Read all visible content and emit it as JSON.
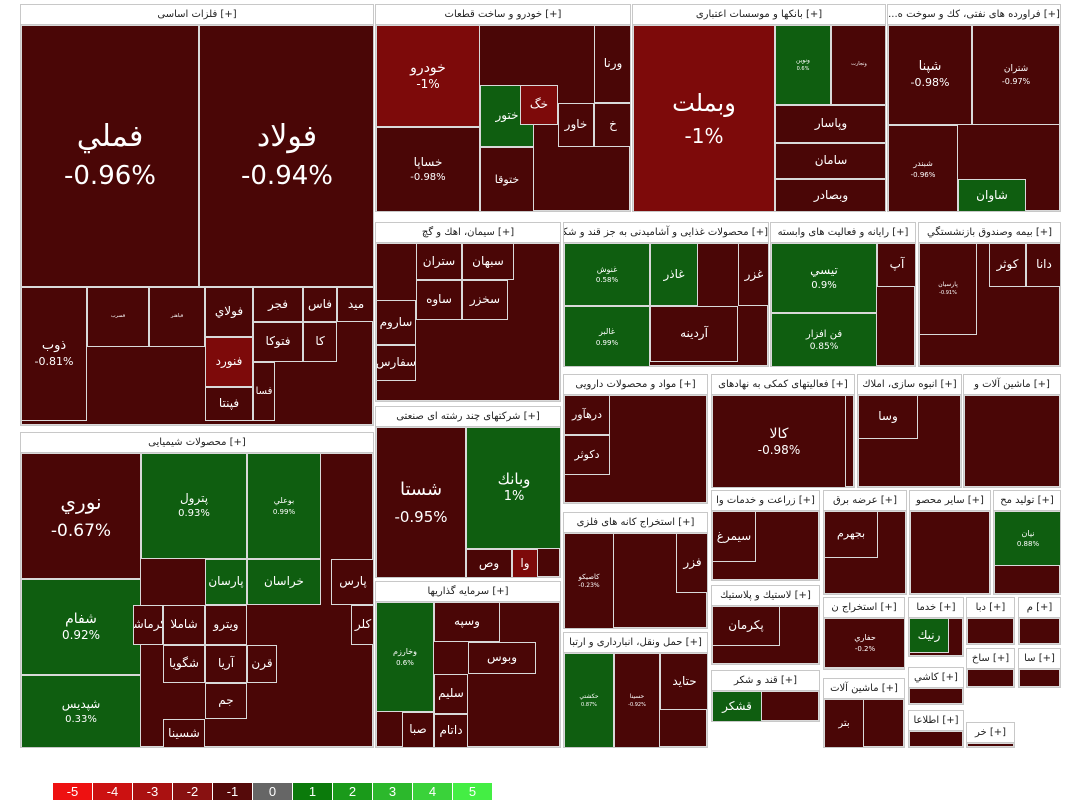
{
  "colors": {
    "red_dark": "#4a0606",
    "red_mid": "#7d0a0a",
    "green_dark": "#0f5e10"
  },
  "sectors": [
    {
      "name": "[+] فلزات اساسی",
      "tiles": [
        {
          "n": "فملي",
          "p": "-0.96%"
        },
        {
          "n": "فولاد",
          "p": "-0.94%"
        },
        {
          "n": "ذوب",
          "p": "-0.81%"
        },
        {
          "n": "فسرب",
          "p": ""
        },
        {
          "n": "فباهنر",
          "p": ""
        },
        {
          "n": "فولاي",
          "p": ""
        },
        {
          "n": "فجر",
          "p": ""
        },
        {
          "n": "فاس",
          "p": ""
        },
        {
          "n": "فتوكا",
          "p": ""
        },
        {
          "n": "فنورد",
          "p": ""
        },
        {
          "n": "فپنتا",
          "p": ""
        },
        {
          "n": "كا",
          "p": ""
        },
        {
          "n": "ميد",
          "p": ""
        },
        {
          "n": "فسا",
          "p": ""
        }
      ]
    },
    {
      "name": "[+] خودرو و ساخت قطعات",
      "tiles": [
        {
          "n": "خودرو",
          "p": "-1%"
        },
        {
          "n": "خساپا",
          "p": "-0.98%"
        },
        {
          "n": "ختور",
          "p": ""
        },
        {
          "n": "ختوقا",
          "p": ""
        },
        {
          "n": "ورنا",
          "p": ""
        },
        {
          "n": "خگ",
          "p": ""
        },
        {
          "n": "خاور",
          "p": ""
        },
        {
          "n": "خ",
          "p": ""
        }
      ]
    },
    {
      "name": "[+] بانکها و موسسات اعتباری",
      "tiles": [
        {
          "n": "وبملت",
          "p": "-1%"
        },
        {
          "n": "وپاسار",
          "p": ""
        },
        {
          "n": "سامان",
          "p": ""
        },
        {
          "n": "وبصادر",
          "p": ""
        },
        {
          "n": "وتجارت",
          "p": ""
        },
        {
          "n": "ونوین",
          "p": "0.6%"
        }
      ]
    },
    {
      "name": "[+] فراورده هاى نفتى، كك و سوخت ه...",
      "tiles": [
        {
          "n": "شپنا",
          "p": "-0.98%"
        },
        {
          "n": "شتران",
          "p": "-0.97%"
        },
        {
          "n": "شبندر",
          "p": "-0.96%"
        },
        {
          "n": "شاوان",
          "p": ""
        }
      ]
    },
    {
      "name": "[+] سيمان، اهك و گچ",
      "tiles": [
        {
          "n": "سبهان",
          "p": ""
        },
        {
          "n": "ستران",
          "p": ""
        },
        {
          "n": "ساوه",
          "p": ""
        },
        {
          "n": "سخزر",
          "p": ""
        },
        {
          "n": "ساروم",
          "p": ""
        },
        {
          "n": "سفارس",
          "p": ""
        }
      ]
    },
    {
      "name": "[+] محصولات غذايى و آشاميدنى به جز قند و شكر",
      "tiles": [
        {
          "n": "غنوش",
          "p": "0.58%"
        },
        {
          "n": "غاذر",
          "p": ""
        },
        {
          "n": "غزر",
          "p": ""
        },
        {
          "n": "آردينه",
          "p": ""
        },
        {
          "n": "غالبر",
          "p": "0.99%"
        }
      ]
    },
    {
      "name": "[+] رايانه و فعاليت هاى وابسته",
      "tiles": [
        {
          "n": "تيسي",
          "p": "0.9%"
        },
        {
          "n": "آپ",
          "p": ""
        },
        {
          "n": "فن افزار",
          "p": "0.85%"
        }
      ]
    },
    {
      "name": "[+] بيمه وصندوق بازنشستگي",
      "tiles": [
        {
          "n": "كوثر",
          "p": ""
        },
        {
          "n": "دانا",
          "p": ""
        },
        {
          "n": "پارسيان",
          "p": "-0.91%"
        }
      ]
    },
    {
      "name": "[+] محصولات شيميايى",
      "tiles": [
        {
          "n": "نوري",
          "p": "-0.67%"
        },
        {
          "n": "پترول",
          "p": "0.93%"
        },
        {
          "n": "بوعلي",
          "p": "0.99%"
        },
        {
          "n": "شفام",
          "p": "0.92%"
        },
        {
          "n": "شپديس",
          "p": "0.33%"
        },
        {
          "n": "خراسان",
          "p": ""
        },
        {
          "n": "پارسان",
          "p": ""
        },
        {
          "n": "پارس",
          "p": ""
        },
        {
          "n": "شاملا",
          "p": ""
        },
        {
          "n": "كرماشا",
          "p": ""
        },
        {
          "n": "ويترو",
          "p": ""
        },
        {
          "n": "شگويا",
          "p": ""
        },
        {
          "n": "آريا",
          "p": ""
        },
        {
          "n": "قرن",
          "p": ""
        },
        {
          "n": "كلر",
          "p": ""
        },
        {
          "n": "شسينا",
          "p": ""
        },
        {
          "n": "جم",
          "p": ""
        }
      ]
    },
    {
      "name": "[+] شركتهاى چند رشته اى صنعتى",
      "tiles": [
        {
          "n": "شستا",
          "p": "-0.95%"
        },
        {
          "n": "وبانك",
          "p": "1%"
        },
        {
          "n": "وص",
          "p": ""
        },
        {
          "n": "وا",
          "p": ""
        }
      ]
    },
    {
      "name": "[+] مواد و محصولات دارويى",
      "tiles": [
        {
          "n": "درهآور",
          "p": ""
        },
        {
          "n": "دكوثر",
          "p": ""
        }
      ]
    },
    {
      "name": "[+] فعاليتهاى كمكى به نهادهاى",
      "tiles": [
        {
          "n": "كالا",
          "p": "-0.98%"
        }
      ]
    },
    {
      "name": "[+] انبوه سازى، املاك",
      "tiles": [
        {
          "n": "وسا",
          "p": ""
        }
      ]
    },
    {
      "name": "[+] ماشين آلات و",
      "tiles": []
    },
    {
      "name": "[+] سرمايه گذاريها",
      "tiles": [
        {
          "n": "وخارزم",
          "p": "0.6%"
        },
        {
          "n": "وسپه",
          "p": ""
        },
        {
          "n": "وبوس",
          "p": ""
        },
        {
          "n": "سليم",
          "p": ""
        },
        {
          "n": "صبا",
          "p": ""
        },
        {
          "n": "داتام",
          "p": ""
        }
      ]
    },
    {
      "name": "[+] استخراج كانه هاى فلزى",
      "tiles": [
        {
          "n": "كاصيكو",
          "p": "-0.23%"
        },
        {
          "n": "فزر",
          "p": ""
        }
      ]
    },
    {
      "name": "[+] حمل ونقل، انبارداری و ارتبا",
      "tiles": [
        {
          "n": "حكشتي",
          "p": "0.87%"
        },
        {
          "n": "حسينا",
          "p": "-0.92%"
        },
        {
          "n": "حتايد",
          "p": ""
        }
      ]
    },
    {
      "name": "[+] زراعت و خدمات وا",
      "tiles": [
        {
          "n": "سيمرغ",
          "p": ""
        }
      ]
    },
    {
      "name": "[+] عرضه برق",
      "tiles": [
        {
          "n": "بجهرم",
          "p": ""
        }
      ]
    },
    {
      "name": "[+] ساير محصو",
      "tiles": []
    },
    {
      "name": "[+] توليد مح",
      "tiles": [
        {
          "n": "نيان",
          "p": "0.88%"
        }
      ]
    },
    {
      "name": "[+] لاستيك و پلاستيك",
      "tiles": [
        {
          "n": "پكرمان",
          "p": ""
        }
      ]
    },
    {
      "name": "[+] استخراج ن",
      "tiles": [
        {
          "n": "حفاري",
          "p": "-0.2%"
        }
      ]
    },
    {
      "name": "[+] خدما",
      "tiles": [
        {
          "n": "رنيك",
          "p": ""
        }
      ]
    },
    {
      "name": "[+] قند و شكر",
      "tiles": [
        {
          "n": "قشكر",
          "p": ""
        }
      ]
    },
    {
      "name": "[+] ماشين آلات",
      "tiles": [
        {
          "n": "بتر",
          "p": ""
        }
      ]
    },
    {
      "name": "[+] كاشي",
      "tiles": []
    },
    {
      "name": "[+] اطلاعا",
      "tiles": []
    },
    {
      "name": "[+] دبا",
      "tiles": []
    },
    {
      "name": "[+] م",
      "tiles": []
    },
    {
      "name": "[+] ساخ",
      "tiles": []
    },
    {
      "name": "[+] سا",
      "tiles": []
    },
    {
      "name": "[+] خر",
      "tiles": []
    }
  ],
  "legend": [
    "-5",
    "-4",
    "-3",
    "-2",
    "-1",
    "0",
    "1",
    "2",
    "3",
    "4",
    "5"
  ],
  "legend_colors": [
    "#ee1111",
    "#cc1111",
    "#aa1111",
    "#881111",
    "#550a0a",
    "#666666",
    "#0b7a0b",
    "#1a9a1a",
    "#2cb82c",
    "#3ad23a",
    "#44ee44"
  ]
}
